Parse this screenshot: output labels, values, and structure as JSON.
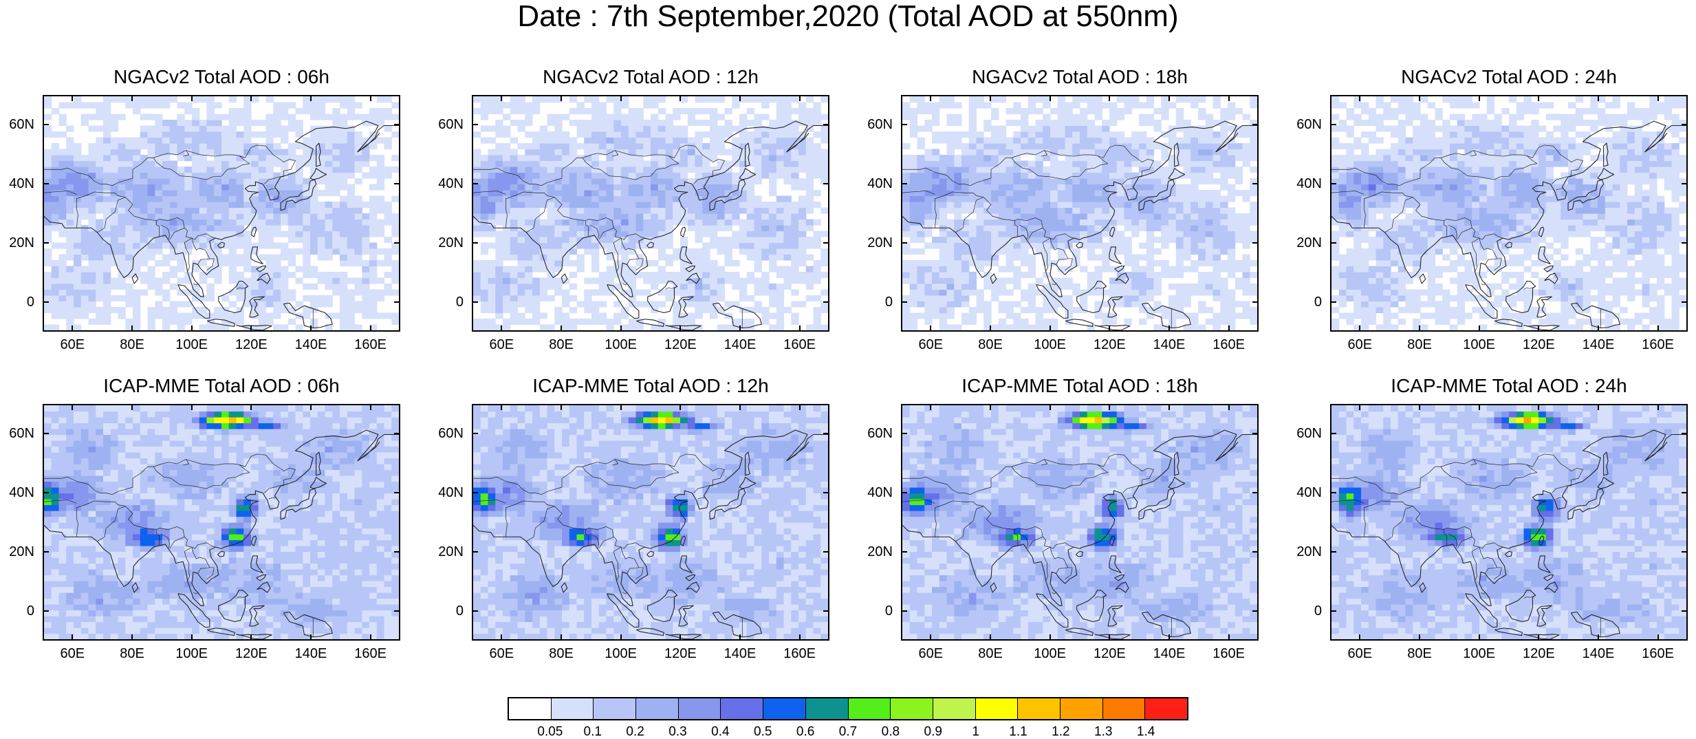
{
  "title": "Date : 7th September,2020 (Total AOD at 550nm)",
  "panels": [
    {
      "title": "NGACv2 Total AOD : 06h",
      "model": "NGACv2",
      "lead": "06h"
    },
    {
      "title": "NGACv2 Total AOD : 12h",
      "model": "NGACv2",
      "lead": "12h"
    },
    {
      "title": "NGACv2 Total AOD : 18h",
      "model": "NGACv2",
      "lead": "18h"
    },
    {
      "title": "NGACv2 Total AOD : 24h",
      "model": "NGACv2",
      "lead": "24h"
    },
    {
      "title": "ICAP-MME Total AOD : 06h",
      "model": "ICAP-MME",
      "lead": "06h"
    },
    {
      "title": "ICAP-MME Total AOD : 12h",
      "model": "ICAP-MME",
      "lead": "12h"
    },
    {
      "title": "ICAP-MME Total AOD : 18h",
      "model": "ICAP-MME",
      "lead": "18h"
    },
    {
      "title": "ICAP-MME Total AOD : 24h",
      "model": "ICAP-MME",
      "lead": "24h"
    }
  ],
  "axes": {
    "lon_range": [
      50,
      170
    ],
    "lat_range": [
      -10,
      70
    ],
    "x_ticks": [
      {
        "value": 60,
        "label": "60E"
      },
      {
        "value": 80,
        "label": "80E"
      },
      {
        "value": 100,
        "label": "100E"
      },
      {
        "value": 120,
        "label": "120E"
      },
      {
        "value": 140,
        "label": "140E"
      },
      {
        "value": 160,
        "label": "160E"
      }
    ],
    "y_ticks": [
      {
        "value": 0,
        "label": "0"
      },
      {
        "value": 20,
        "label": "20N"
      },
      {
        "value": 40,
        "label": "40N"
      },
      {
        "value": 60,
        "label": "60N"
      }
    ]
  },
  "colorbar": {
    "colors": [
      "#ffffff",
      "#d6e0fb",
      "#b7c6f6",
      "#9eb2f2",
      "#8797ee",
      "#6670e8",
      "#0f62ee",
      "#0d9290",
      "#54ee1a",
      "#8cf41d",
      "#bff44a",
      "#ffff00",
      "#ffc300",
      "#ffa200",
      "#ff7b00",
      "#ff1f14"
    ],
    "labels": [
      "0.05",
      "0.1",
      "0.2",
      "0.3",
      "0.4",
      "0.5",
      "0.6",
      "0.7",
      "0.8",
      "0.9",
      "1",
      "1.1",
      "1.2",
      "1.3",
      "1.4"
    ]
  }
}
